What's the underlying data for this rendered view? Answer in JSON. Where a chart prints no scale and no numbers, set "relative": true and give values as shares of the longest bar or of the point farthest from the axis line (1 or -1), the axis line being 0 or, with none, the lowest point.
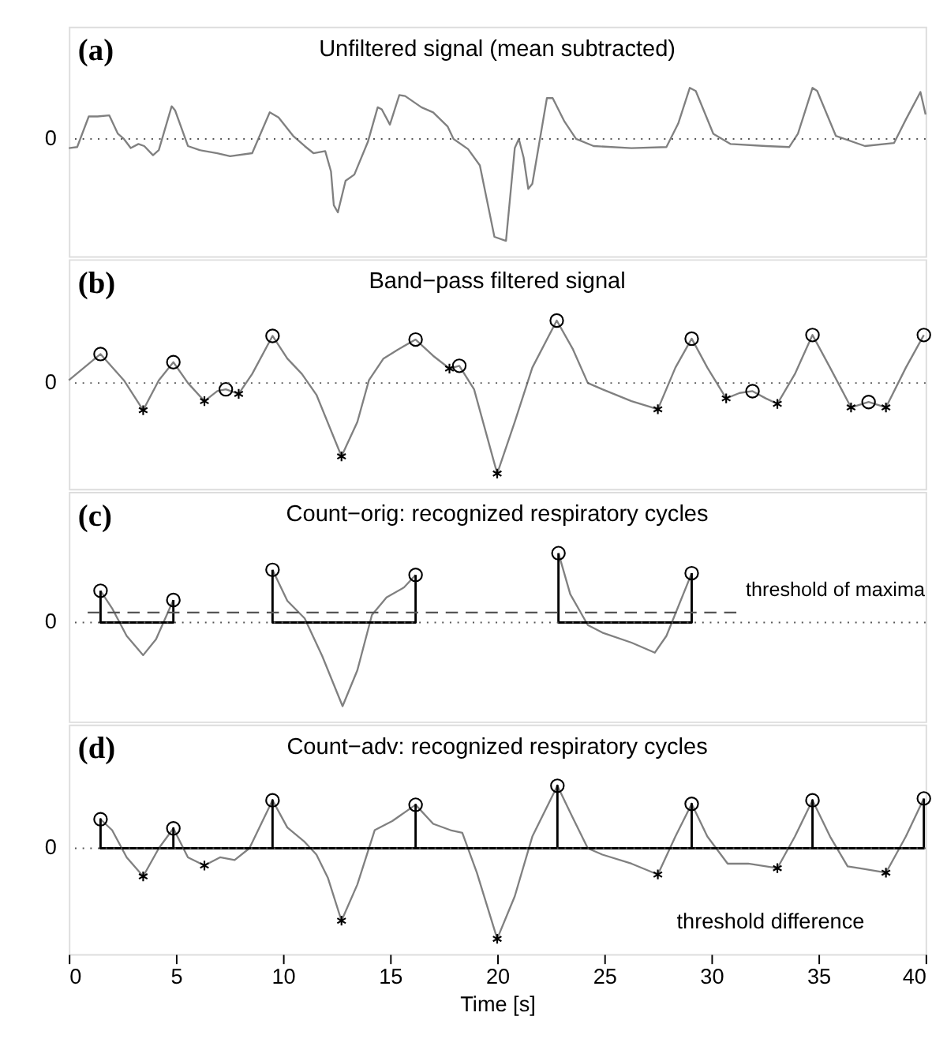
{
  "chart_data": [
    {
      "type": "line",
      "title": "Unfiltered signal (mean subtracted)",
      "relative": true,
      "xlim": [
        0,
        40
      ],
      "xticks": [
        0,
        5,
        10,
        15,
        20,
        25,
        30,
        35,
        40
      ],
      "tick_labels": false,
      "grid": false,
      "annotations": [
        "(a)"
      ],
      "ref_lines": [
        {
          "axis": "y",
          "value": 0,
          "label": "0",
          "line_style": "dotted",
          "color": "#555555"
        }
      ],
      "series": [
        {
          "type": "line",
          "color": "#808080",
          "x": [
            0,
            0.39,
            0.93,
            1.34,
            1.89,
            2.29,
            2.57,
            2.89,
            3.25,
            3.52,
            3.93,
            4.2,
            4.8,
            4.96,
            5.56,
            6.11,
            6.93,
            7.53,
            8.56,
            9.38,
            9.79,
            10.47,
            11.01,
            11.42,
            11.97,
            12.24,
            12.37,
            12.56,
            12.92,
            13.33,
            13.96,
            14.42,
            14.61,
            14.99,
            15.43,
            15.7,
            16.46,
            17.01,
            17.69,
            17.96,
            18.64,
            19.19,
            19.87,
            20.41,
            20.82,
            21.01,
            21.23,
            21.45,
            21.64,
            22.32,
            22.59,
            23.14,
            23.68,
            24.5,
            26.27,
            27.9,
            28.45,
            28.99,
            29.27,
            30.09,
            30.9,
            32.54,
            33.63,
            34.04,
            34.72,
            34.94,
            35.81,
            37.17,
            38.53,
            39.08,
            39.76,
            40
          ],
          "values": [
            -0.09,
            -0.08,
            0.22,
            0.22,
            0.23,
            0.05,
            0.0,
            -0.09,
            -0.05,
            -0.07,
            -0.16,
            -0.11,
            0.32,
            0.28,
            -0.07,
            -0.11,
            -0.14,
            -0.17,
            -0.14,
            0.26,
            0.21,
            0.03,
            -0.07,
            -0.14,
            -0.12,
            -0.32,
            -0.65,
            -0.72,
            -0.41,
            -0.35,
            -0.03,
            0.31,
            0.29,
            0.14,
            0.43,
            0.42,
            0.31,
            0.26,
            0.12,
            0.0,
            -0.1,
            -0.26,
            -0.96,
            -1.0,
            -0.09,
            0.0,
            -0.18,
            -0.49,
            -0.44,
            0.4,
            0.4,
            0.17,
            0.0,
            -0.07,
            -0.09,
            -0.08,
            0.15,
            0.5,
            0.47,
            0.05,
            -0.05,
            -0.07,
            -0.08,
            0.05,
            0.5,
            0.47,
            0.03,
            -0.07,
            -0.04,
            0.19,
            0.46,
            0.24
          ]
        }
      ]
    },
    {
      "type": "line",
      "title": "Band−pass filtered signal",
      "relative": true,
      "xlim": [
        0,
        40
      ],
      "xticks": [
        0,
        5,
        10,
        15,
        20,
        25,
        30,
        35,
        40
      ],
      "tick_labels": false,
      "grid": false,
      "annotations": [
        "(b)"
      ],
      "ref_lines": [
        {
          "axis": "y",
          "value": 0,
          "label": "0",
          "line_style": "dotted",
          "color": "#555555"
        }
      ],
      "series": [
        {
          "type": "line",
          "color": "#808080",
          "x": [
            0,
            1.48,
            2.57,
            3.47,
            4.2,
            4.88,
            5.56,
            6.33,
            6.93,
            7.33,
            7.93,
            8.56,
            9.51,
            10.2,
            10.88,
            11.56,
            12.73,
            13.47,
            14.01,
            14.69,
            15.37,
            16.19,
            17.01,
            17.77,
            18.23,
            18.92,
            20.0,
            20.82,
            21.64,
            22.78,
            23.54,
            24.23,
            24.91,
            26.27,
            27.5,
            28.32,
            29.08,
            29.81,
            30.69,
            31.32,
            31.92,
            32.54,
            33.08,
            33.9,
            34.72,
            35.54,
            36.52,
            37.34,
            38.15,
            39.08,
            39.92
          ],
          "values": [
            0.03,
            0.32,
            0.03,
            -0.3,
            0.03,
            0.23,
            0.0,
            -0.2,
            -0.09,
            -0.07,
            -0.12,
            0.1,
            0.52,
            0.27,
            0.1,
            -0.13,
            -0.81,
            -0.43,
            0.03,
            0.27,
            0.37,
            0.48,
            0.3,
            0.16,
            0.19,
            -0.07,
            -1.0,
            -0.43,
            0.17,
            0.69,
            0.37,
            0.0,
            -0.07,
            -0.2,
            -0.29,
            0.17,
            0.49,
            0.17,
            -0.17,
            -0.11,
            -0.09,
            -0.17,
            -0.23,
            0.1,
            0.53,
            0.17,
            -0.27,
            -0.21,
            -0.27,
            0.17,
            0.53
          ]
        },
        {
          "type": "scatter",
          "marker": "circle",
          "color": "#000000",
          "x": [
            1.48,
            4.88,
            7.33,
            9.51,
            16.19,
            18.23,
            22.78,
            29.08,
            31.92,
            34.72,
            37.34,
            39.92
          ],
          "values": [
            0.32,
            0.23,
            -0.07,
            0.52,
            0.48,
            0.19,
            0.69,
            0.49,
            -0.09,
            0.53,
            -0.21,
            0.53
          ]
        },
        {
          "type": "scatter",
          "marker": "cross",
          "color": "#000000",
          "x": [
            3.47,
            6.33,
            7.93,
            12.73,
            17.77,
            20.0,
            27.5,
            30.69,
            33.08,
            36.52,
            38.15
          ],
          "values": [
            -0.3,
            -0.2,
            -0.12,
            -0.81,
            0.16,
            -1.0,
            -0.29,
            -0.17,
            -0.23,
            -0.27,
            -0.27
          ]
        }
      ]
    },
    {
      "type": "line",
      "title": "Count−orig: recognized respiratory cycles",
      "relative": true,
      "xlim": [
        0,
        40
      ],
      "xticks": [
        0,
        5,
        10,
        15,
        20,
        25,
        30,
        35,
        40
      ],
      "tick_labels": false,
      "grid": false,
      "annotations": [
        "(c)",
        {
          "text": "threshold of maxima",
          "x": 31.18,
          "y": 0.12
        }
      ],
      "ref_lines": [
        {
          "axis": "y",
          "value": 0,
          "label": "0",
          "line_style": "dotted",
          "color": "#555555"
        }
      ],
      "series": [
        {
          "type": "line",
          "color": "#808080",
          "x": [
            1.48,
            2.02,
            2.7,
            3.47,
            4.07,
            4.88,
            7.0,
            9.51,
            10.2,
            11.01,
            11.83,
            12.78,
            13.47,
            14.15,
            14.83,
            15.65,
            16.19,
            19.5,
            22.86,
            23.41,
            24.23,
            24.91,
            26.27,
            27.36,
            27.9,
            29.08
          ],
          "values": [
            0.38,
            0.17,
            -0.16,
            -0.39,
            -0.2,
            0.27,
            null,
            0.63,
            0.26,
            0.05,
            -0.4,
            -1.0,
            -0.57,
            0.09,
            0.3,
            0.42,
            0.57,
            null,
            0.83,
            0.34,
            -0.03,
            -0.12,
            -0.24,
            -0.36,
            -0.16,
            0.59
          ]
        },
        {
          "type": "line",
          "color": "#000000",
          "x": [
            1.48,
            1.48,
            4.88,
            4.88,
            7.0,
            9.51,
            9.51,
            16.19,
            16.19,
            19.5,
            22.86,
            22.86,
            29.08,
            29.08
          ],
          "values": [
            0.38,
            0,
            0,
            0.27,
            null,
            0.63,
            0,
            0,
            0.57,
            null,
            0.83,
            0,
            0,
            0.59
          ]
        },
        {
          "type": "line",
          "color": "#555555",
          "line_style": "dashed",
          "x": [
            0.88,
            31.18
          ],
          "values": [
            0.12,
            0.12
          ]
        },
        {
          "type": "scatter",
          "marker": "circle",
          "color": "#000000",
          "x": [
            1.48,
            4.88,
            9.51,
            16.19,
            22.86,
            29.08
          ],
          "values": [
            0.38,
            0.27,
            0.63,
            0.57,
            0.83,
            0.59
          ]
        }
      ]
    },
    {
      "type": "line",
      "title": "Count−adv: recognized respiratory cycles",
      "xlabel": "Time [s]",
      "relative": true,
      "xlim": [
        0,
        40
      ],
      "xticks": [
        0,
        5,
        10,
        15,
        20,
        25,
        30,
        35,
        40
      ],
      "tick_labels": "x",
      "grid": false,
      "annotations": [
        "(d)",
        "threshold difference"
      ],
      "ref_lines": [
        {
          "axis": "y",
          "value": 0,
          "label": "0",
          "line_style": "dotted",
          "color": "#555555"
        }
      ],
      "series": [
        {
          "type": "line",
          "color": "#808080",
          "x": [
            1.48,
            2.02,
            2.7,
            3.47,
            4.2,
            4.88,
            5.56,
            6.33,
            7.06,
            7.74,
            8.43,
            9.51,
            10.2,
            11.01,
            11.56,
            12.1,
            12.73,
            13.47,
            14.28,
            15.1,
            16.19,
            17.01,
            17.82,
            18.37,
            19.05,
            20.0,
            20.82,
            21.64,
            22.81,
            23.54,
            24.23,
            24.91,
            26.27,
            27.5,
            28.32,
            29.08,
            29.81,
            30.76,
            31.72,
            33.08,
            33.9,
            34.72,
            35.54,
            36.36,
            37.17,
            38.15,
            39.08,
            39.92
          ],
          "values": [
            0.32,
            0.2,
            -0.1,
            -0.31,
            0.0,
            0.22,
            -0.1,
            -0.19,
            -0.1,
            -0.13,
            0.0,
            0.53,
            0.23,
            0.07,
            -0.07,
            -0.33,
            -0.8,
            -0.4,
            0.2,
            0.3,
            0.48,
            0.27,
            0.2,
            0.17,
            -0.27,
            -1.0,
            -0.53,
            0.13,
            0.69,
            0.33,
            0.0,
            -0.07,
            -0.17,
            -0.29,
            0.13,
            0.49,
            0.13,
            -0.17,
            -0.17,
            -0.22,
            0.13,
            0.53,
            0.13,
            -0.2,
            -0.23,
            -0.27,
            0.13,
            0.55
          ]
        },
        {
          "type": "line",
          "color": "#000000",
          "x": [
            1.48,
            1.48,
            1.48,
            4.88,
            4.88,
            4.88,
            9.51,
            9.51,
            9.51,
            16.19,
            16.19,
            16.19,
            22.81,
            22.81,
            22.81,
            29.08,
            29.08,
            29.08,
            34.72,
            34.72,
            34.72,
            39.92,
            39.92
          ],
          "values": [
            0,
            0.32,
            0,
            0,
            0.22,
            0,
            0,
            0.53,
            0,
            0,
            0.48,
            0,
            0,
            0.69,
            0,
            0,
            0.49,
            0,
            0,
            0.53,
            0,
            0,
            0.55
          ]
        },
        {
          "type": "scatter",
          "marker": "circle",
          "color": "#000000",
          "x": [
            1.48,
            4.88,
            9.51,
            16.19,
            22.81,
            29.08,
            34.72,
            39.92
          ],
          "values": [
            0.32,
            0.22,
            0.53,
            0.48,
            0.69,
            0.49,
            0.53,
            0.55
          ]
        },
        {
          "type": "scatter",
          "marker": "cross",
          "color": "#000000",
          "x": [
            3.47,
            6.33,
            12.73,
            20.0,
            27.5,
            33.08,
            38.15
          ],
          "values": [
            -0.31,
            -0.19,
            -0.8,
            -1.0,
            -0.29,
            -0.22,
            -0.27
          ]
        }
      ]
    }
  ]
}
